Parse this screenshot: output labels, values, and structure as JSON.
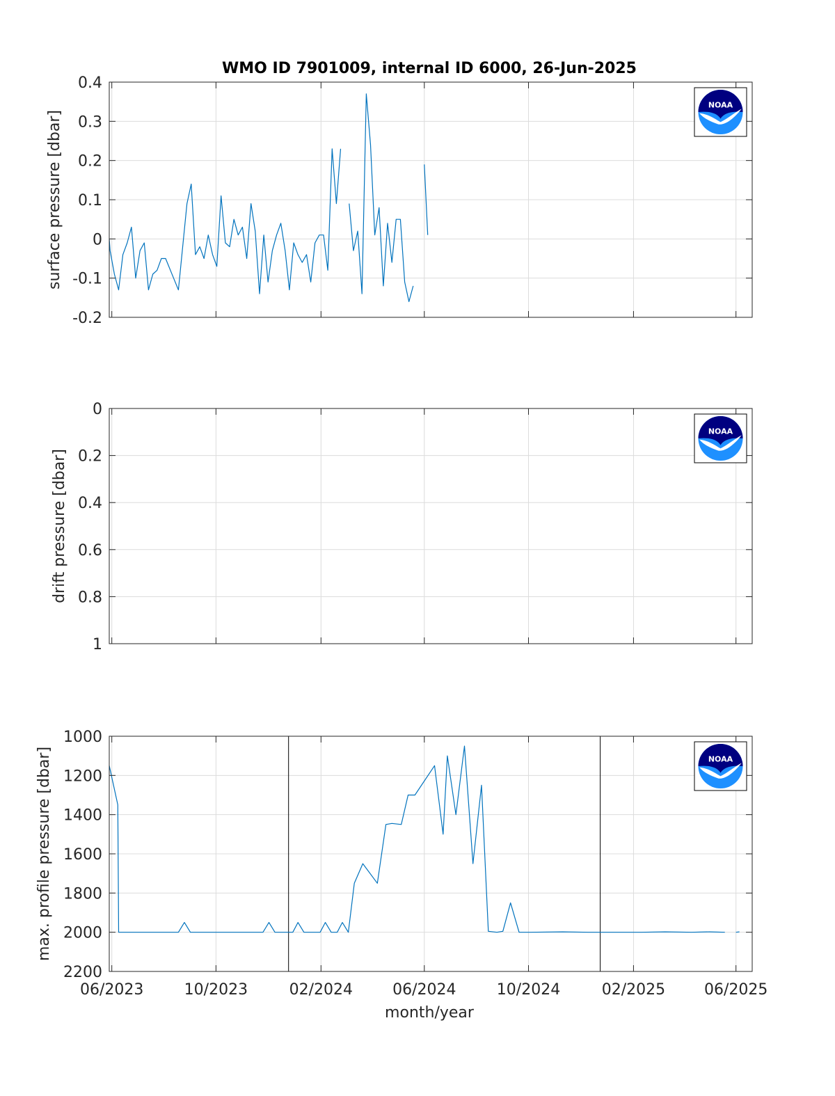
{
  "figure_title": "WMO ID 7901009, internal ID 6000, 26-Jun-2025",
  "logo_text": "NOAA",
  "colors": {
    "series": "#0072BD",
    "grid": "#dcdcdc",
    "axes": "#262626",
    "marker_line": "#000000",
    "logo_dark": "#000080",
    "logo_light": "#1e90ff"
  },
  "chart_data": [
    {
      "type": "line",
      "title": "WMO ID 7901009, internal ID 6000, 26-Jun-2025",
      "xlabel": "",
      "ylabel": "surface pressure [dbar]",
      "xlim": [
        "2023-05-29",
        "2025-06-20"
      ],
      "ylim": [
        -0.2,
        0.4
      ],
      "y_reversed": false,
      "grid": true,
      "xticks": [
        "2023-06-01",
        "2023-10-01",
        "2024-02-01",
        "2024-06-01",
        "2024-10-01",
        "2025-02-01",
        "2025-06-01"
      ],
      "xtick_labels": [],
      "yticks": [
        -0.2,
        -0.1,
        0,
        0.1,
        0.2,
        0.3,
        0.4
      ],
      "ytick_labels": [
        "-0.2",
        "-0.1",
        "0",
        "0.1",
        "0.2",
        "0.3",
        "0.4"
      ],
      "vertical_lines": [],
      "series": [
        {
          "points": [
            [
              "2023-05-29",
              0
            ],
            [
              "2023-05-30",
              -0.03
            ],
            [
              "2023-06-04",
              -0.09
            ],
            [
              "2023-06-09",
              -0.13
            ],
            [
              "2023-06-14",
              -0.04
            ],
            [
              "2023-06-19",
              -0.01
            ],
            [
              "2023-06-24",
              0.03
            ],
            [
              "2023-06-29",
              -0.1
            ],
            [
              "2023-07-04",
              -0.03
            ],
            [
              "2023-07-09",
              -0.01
            ],
            [
              "2023-07-14",
              -0.13
            ],
            [
              "2023-07-19",
              -0.09
            ],
            [
              "2023-07-24",
              -0.08
            ],
            [
              "2023-07-29",
              -0.05
            ],
            [
              "2023-08-03",
              -0.05
            ],
            [
              "2023-08-18",
              -0.13
            ],
            [
              "2023-08-28",
              0.09
            ],
            [
              "2023-09-02",
              0.14
            ],
            [
              "2023-09-07",
              -0.04
            ],
            [
              "2023-09-12",
              -0.02
            ],
            [
              "2023-09-17",
              -0.05
            ],
            [
              "2023-09-22",
              0.01
            ],
            [
              "2023-09-27",
              -0.04
            ],
            [
              "2023-10-02",
              -0.07
            ],
            [
              "2023-10-07",
              0.11
            ],
            [
              "2023-10-12",
              -0.01
            ],
            [
              "2023-10-17",
              -0.02
            ],
            [
              "2023-10-22",
              0.05
            ],
            [
              "2023-10-27",
              0.01
            ],
            [
              "2023-11-01",
              0.03
            ],
            [
              "2023-11-06",
              -0.05
            ],
            [
              "2023-11-11",
              0.09
            ],
            [
              "2023-11-16",
              0.02
            ],
            [
              "2023-11-21",
              -0.14
            ],
            [
              "2023-11-26",
              0.01
            ],
            [
              "2023-12-01",
              -0.11
            ],
            [
              "2023-12-06",
              -0.03
            ],
            [
              "2023-12-11",
              0.01
            ],
            [
              "2023-12-16",
              0.04
            ],
            [
              "2023-12-21",
              -0.03
            ],
            [
              "2023-12-26",
              -0.13
            ],
            [
              "2023-12-31",
              -0.01
            ],
            [
              "2024-01-05",
              -0.04
            ],
            [
              "2024-01-10",
              -0.06
            ],
            [
              "2024-01-15",
              -0.04
            ],
            [
              "2024-01-20",
              -0.11
            ],
            [
              "2024-01-25",
              -0.01
            ],
            [
              "2024-01-30",
              0.01
            ],
            [
              "2024-02-04",
              0.01
            ],
            [
              "2024-02-09",
              -0.08
            ],
            [
              "2024-02-14",
              0.23
            ],
            [
              "2024-02-19",
              0.09
            ],
            [
              "2024-02-24",
              0.23
            ]
          ]
        },
        {
          "points": [
            [
              "2024-03-05",
              0.09
            ],
            [
              "2024-03-10",
              -0.03
            ],
            [
              "2024-03-15",
              0.02
            ],
            [
              "2024-03-20",
              -0.14
            ],
            [
              "2024-03-25",
              0.37
            ],
            [
              "2024-03-30",
              0.24
            ],
            [
              "2024-04-04",
              0.01
            ],
            [
              "2024-04-09",
              0.08
            ],
            [
              "2024-04-14",
              -0.12
            ],
            [
              "2024-04-19",
              0.04
            ],
            [
              "2024-04-24",
              -0.06
            ],
            [
              "2024-04-29",
              0.05
            ],
            [
              "2024-05-04",
              0.05
            ],
            [
              "2024-05-09",
              -0.11
            ],
            [
              "2024-05-14",
              -0.16
            ],
            [
              "2024-05-19",
              -0.12
            ]
          ]
        },
        {
          "points": [
            [
              "2024-06-01",
              0.19
            ],
            [
              "2024-06-05",
              0.01
            ]
          ]
        }
      ]
    },
    {
      "type": "line",
      "xlabel": "",
      "ylabel": "drift pressure [dbar]",
      "xlim": [
        "2023-05-29",
        "2025-06-20"
      ],
      "ylim": [
        0,
        1
      ],
      "y_reversed": true,
      "grid": true,
      "xticks": [
        "2023-06-01",
        "2023-10-01",
        "2024-02-01",
        "2024-06-01",
        "2024-10-01",
        "2025-02-01",
        "2025-06-01"
      ],
      "xtick_labels": [],
      "yticks": [
        0,
        0.2,
        0.4,
        0.6,
        0.8,
        1
      ],
      "ytick_labels": [
        "0",
        "0.2",
        "0.4",
        "0.6",
        "0.8",
        "1"
      ],
      "vertical_lines": [],
      "series": []
    },
    {
      "type": "line",
      "xlabel": "month/year",
      "ylabel": "max. profile pressure [dbar]",
      "xlim": [
        "2023-05-29",
        "2025-06-20"
      ],
      "ylim": [
        1000,
        2200
      ],
      "y_reversed": true,
      "grid": true,
      "xticks": [
        "2023-06-01",
        "2023-10-01",
        "2024-02-01",
        "2024-06-01",
        "2024-10-01",
        "2025-02-01",
        "2025-06-01"
      ],
      "xtick_labels": [
        "06/2023",
        "10/2023",
        "02/2024",
        "06/2024",
        "10/2024",
        "02/2025",
        "06/2025"
      ],
      "yticks": [
        1000,
        1200,
        1400,
        1600,
        1800,
        2000,
        2200
      ],
      "ytick_labels": [
        "1000",
        "1200",
        "1400",
        "1600",
        "1800",
        "2000",
        "2200"
      ],
      "vertical_lines": [
        "2023-12-25",
        "2024-12-24"
      ],
      "series": [
        {
          "points": [
            [
              "2023-05-29",
              1150
            ],
            [
              "2023-06-08",
              1350
            ],
            [
              "2023-06-09",
              2000
            ],
            [
              "2023-06-19",
              2000
            ],
            [
              "2023-07-04",
              2000
            ],
            [
              "2023-07-19",
              2000
            ],
            [
              "2023-08-18",
              2000
            ],
            [
              "2023-08-25",
              1950
            ],
            [
              "2023-09-01",
              2000
            ],
            [
              "2023-09-19",
              2000
            ],
            [
              "2023-10-29",
              2000
            ],
            [
              "2023-11-25",
              2000
            ],
            [
              "2023-12-02",
              1950
            ],
            [
              "2023-12-09",
              2000
            ],
            [
              "2023-12-30",
              2000
            ],
            [
              "2024-01-05",
              1950
            ],
            [
              "2024-01-12",
              2000
            ],
            [
              "2024-01-31",
              2000
            ],
            [
              "2024-02-06",
              1950
            ],
            [
              "2024-02-13",
              2000
            ],
            [
              "2024-02-20",
              2000
            ],
            [
              "2024-02-26",
              1950
            ],
            [
              "2024-03-04",
              2000
            ],
            [
              "2024-03-11",
              1750
            ],
            [
              "2024-03-21",
              1650
            ],
            [
              "2024-04-07",
              1750
            ],
            [
              "2024-04-17",
              1450
            ],
            [
              "2024-04-24",
              1445
            ],
            [
              "2024-05-05",
              1450
            ],
            [
              "2024-05-13",
              1300
            ],
            [
              "2024-05-21",
              1300
            ],
            [
              "2024-06-13",
              1150
            ],
            [
              "2024-06-23",
              1500
            ],
            [
              "2024-06-28",
              1100
            ],
            [
              "2024-07-08",
              1400
            ],
            [
              "2024-07-18",
              1050
            ],
            [
              "2024-07-28",
              1650
            ],
            [
              "2024-08-07",
              1250
            ],
            [
              "2024-08-15",
              1995
            ],
            [
              "2024-08-25",
              2000
            ],
            [
              "2024-09-01",
              1995
            ],
            [
              "2024-09-10",
              1850
            ],
            [
              "2024-09-20",
              2000
            ],
            [
              "2024-10-03",
              2000
            ],
            [
              "2024-11-10",
              1998
            ],
            [
              "2024-12-10",
              2000
            ],
            [
              "2025-02-10",
              2000
            ],
            [
              "2025-03-10",
              1998
            ],
            [
              "2025-04-10",
              2000
            ],
            [
              "2025-05-01",
              1998
            ],
            [
              "2025-05-19",
              2000
            ]
          ]
        },
        {
          "points": [
            [
              "2025-06-01",
              2000
            ],
            [
              "2025-06-05",
              1998
            ]
          ]
        }
      ]
    }
  ]
}
